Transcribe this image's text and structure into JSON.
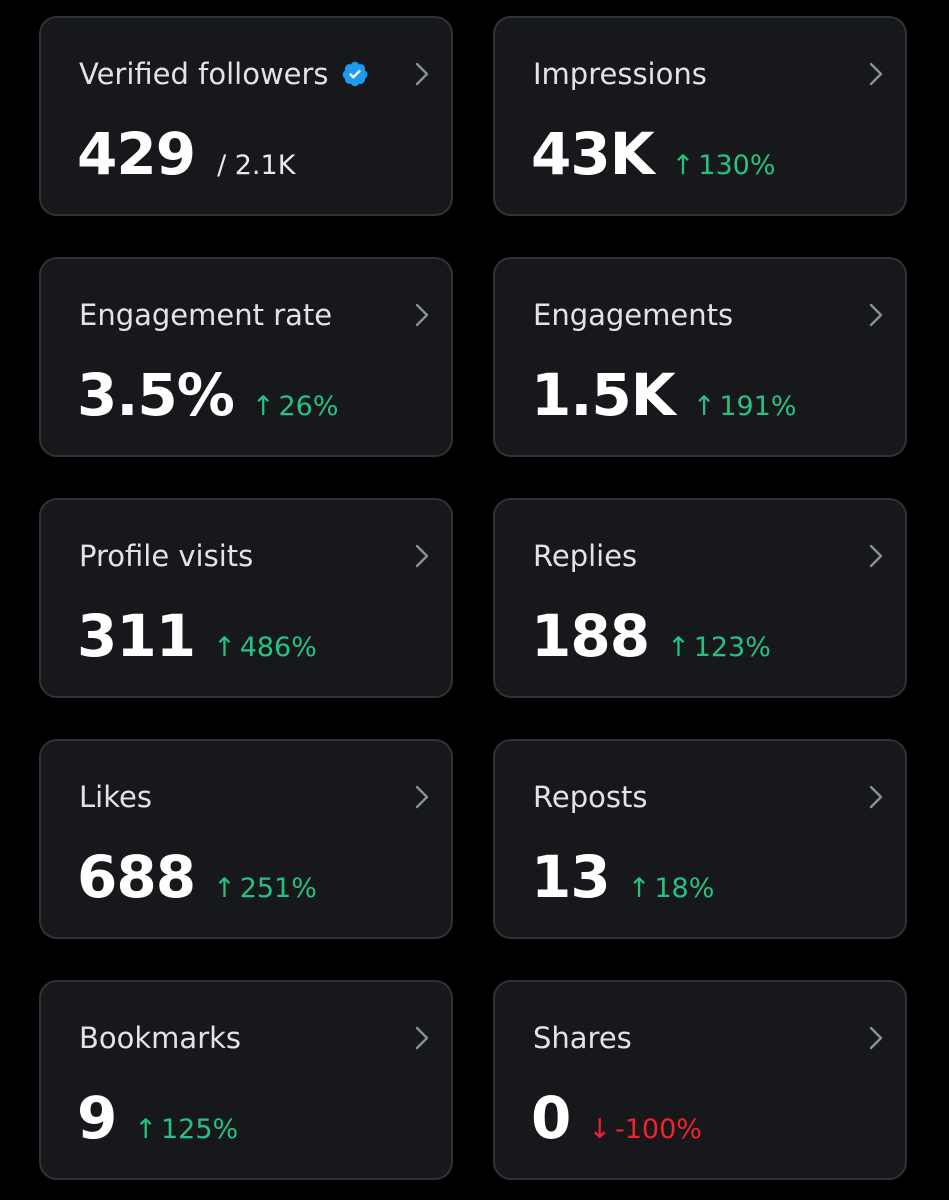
{
  "colors": {
    "background": "#000000",
    "card": "#16181c",
    "card_border": "#2f3336",
    "positive": "#26c281",
    "negative": "#f4212e",
    "verified_badge": "#1d9bf0"
  },
  "cards": [
    {
      "label": "Verified followers",
      "value": "429",
      "sub": "/ 2.1K",
      "verified_icon": "verified-badge-icon"
    },
    {
      "label": "Impressions",
      "value": "43K",
      "change": "130%",
      "direction": "up"
    },
    {
      "label": "Engagement rate",
      "value": "3.5%",
      "change": "26%",
      "direction": "up"
    },
    {
      "label": "Engagements",
      "value": "1.5K",
      "change": "191%",
      "direction": "up"
    },
    {
      "label": "Profile visits",
      "value": "311",
      "change": "486%",
      "direction": "up"
    },
    {
      "label": "Replies",
      "value": "188",
      "change": "123%",
      "direction": "up"
    },
    {
      "label": "Likes",
      "value": "688",
      "change": "251%",
      "direction": "up"
    },
    {
      "label": "Reposts",
      "value": "13",
      "change": "18%",
      "direction": "up"
    },
    {
      "label": "Bookmarks",
      "value": "9",
      "change": "125%",
      "direction": "up"
    },
    {
      "label": "Shares",
      "value": "0",
      "change": "-100%",
      "direction": "down"
    }
  ],
  "icons": {
    "chevron": "chevron-right-icon",
    "up": "arrow-up-icon",
    "down": "arrow-down-icon"
  }
}
